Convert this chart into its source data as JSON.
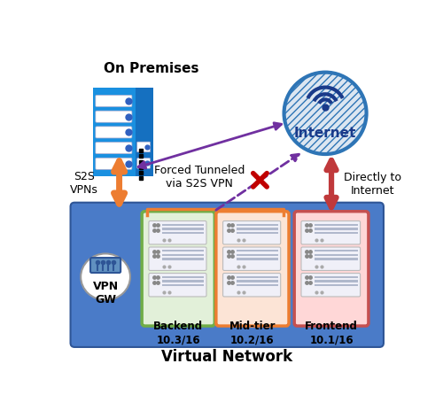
{
  "bg_color": "#ffffff",
  "title": "Virtual Network",
  "on_premises_label": "On Premises",
  "internet_label": "Internet",
  "vpn_gw_label": "VPN\nGW",
  "s2s_label": "S2S\nVPNs",
  "forced_label": "Forced Tunneled\nvia S2S VPN",
  "directly_label": "Directly to\nInternet",
  "backend_label": "Backend\n10.3/16",
  "midtier_label": "Mid-tier\n10.2/16",
  "frontend_label": "Frontend\n10.1/16",
  "vnet_color": "#4a7bc8",
  "vnet_edge_color": "#2e5596",
  "backend_color": "#e2f0d9",
  "backend_edge": "#70ad47",
  "midtier_color": "#fce4d6",
  "midtier_edge": "#ed7d31",
  "group_bracket_color": "#ed7d31",
  "frontend_color": "#ffd7d7",
  "frontend_edge": "#c55050",
  "internet_fill": "#dce6f1",
  "internet_edge": "#2e75b6",
  "internet_hatch": "////",
  "vpn_gw_fill": "#ffffff",
  "server_bg": "#2e75b6",
  "server_row_fill": "#ffffff",
  "server_bar_fill": "#c8d8ec",
  "arrow_s2s_color": "#ed7d31",
  "arrow_vpn_color": "#7030a0",
  "arrow_direct_color": "#c0393b",
  "arrow_forced_color": "#7030a0",
  "cross_color": "#c00000",
  "op_server_bg": "#1a75c8",
  "op_server_row": "#ffffff",
  "op_dots_color": "#1040a0"
}
